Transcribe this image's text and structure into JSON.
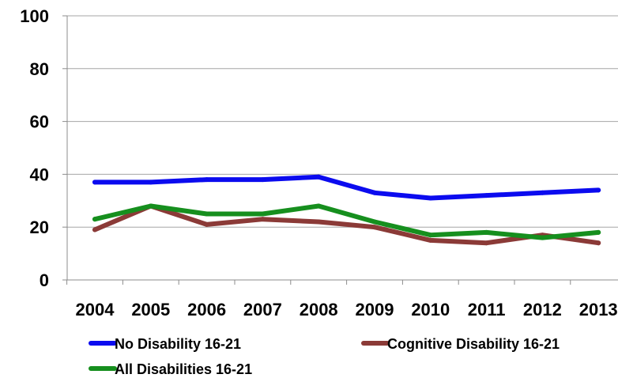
{
  "chart_data": {
    "type": "line",
    "title": "",
    "xlabel": "",
    "ylabel": "",
    "categories": [
      "2004",
      "2005",
      "2006",
      "2007",
      "2008",
      "2009",
      "2010",
      "2011",
      "2012",
      "2013"
    ],
    "ylim": [
      0,
      100
    ],
    "yticks": [
      0,
      20,
      40,
      60,
      80,
      100
    ],
    "grid": true,
    "legend_position": "bottom",
    "series": [
      {
        "name": "No Disability 16-21",
        "color": "#0b0bef",
        "values": [
          37,
          37,
          38,
          38,
          39,
          33,
          31,
          32,
          33,
          34
        ]
      },
      {
        "name": "Cognitive Disability 16-21",
        "color": "#8b3a37",
        "values": [
          19,
          28,
          21,
          23,
          22,
          20,
          15,
          14,
          17,
          14
        ]
      },
      {
        "name": "All Disabilities 16-21",
        "color": "#168f1e",
        "values": [
          23,
          28,
          25,
          25,
          28,
          22,
          17,
          18,
          16,
          18
        ]
      }
    ]
  }
}
